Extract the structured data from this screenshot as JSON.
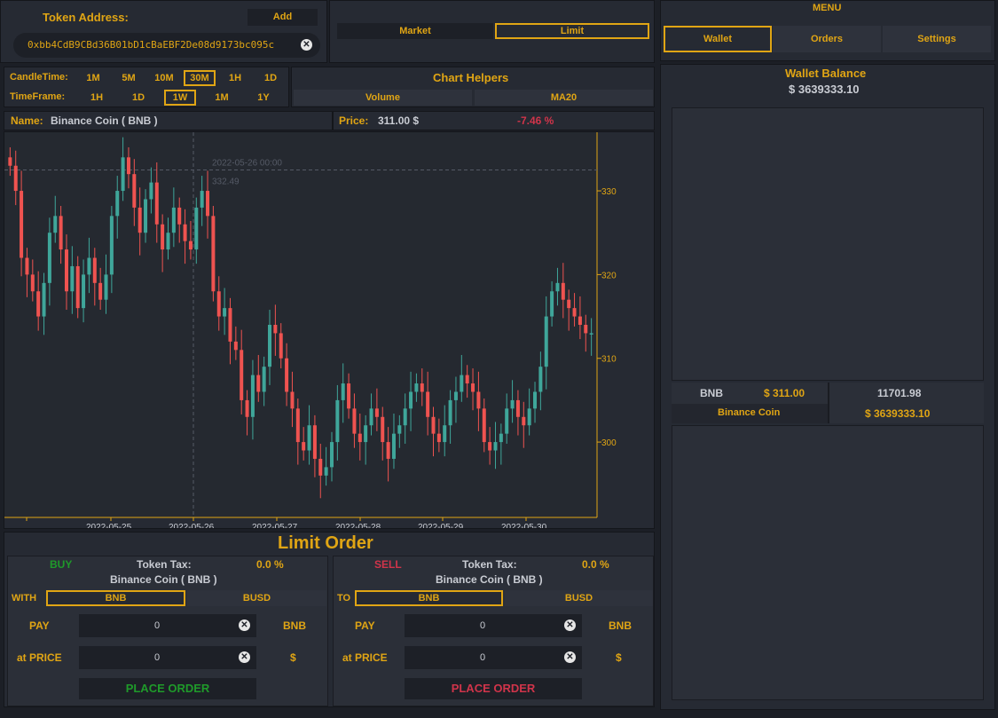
{
  "token": {
    "label": "Token Address:",
    "add_label": "Add",
    "address": "0xbb4CdB9CBd36B01bD1cBaEBF2De08d9173bc095c"
  },
  "order_type": {
    "market": "Market",
    "limit": "Limit",
    "selected": "Limit"
  },
  "menu": {
    "title": "MENU",
    "tabs": [
      "Wallet",
      "Orders",
      "Settings"
    ],
    "selected": "Wallet"
  },
  "candle_time": {
    "label": "CandleTime:",
    "options": [
      "1M",
      "5M",
      "10M",
      "30M",
      "1H",
      "1D"
    ],
    "selected": "30M"
  },
  "time_frame": {
    "label": "TimeFrame:",
    "options": [
      "1H",
      "1D",
      "1W",
      "1M",
      "1Y"
    ],
    "selected": "1W"
  },
  "chart_helpers": {
    "title": "Chart Helpers",
    "volume": "Volume",
    "ma20": "MA20"
  },
  "info": {
    "name_label": "Name:",
    "name_value": "Binance Coin ( BNB )",
    "price_label": "Price:",
    "price_value": "311.00 $",
    "change": "-7.46 %"
  },
  "colors": {
    "accent": "#e0a514",
    "up": "#3fa69a",
    "down": "#ef5350",
    "buy": "#1f9a2a",
    "sell": "#d0344a"
  },
  "chart_data": {
    "type": "candlestick",
    "x_ticks": [
      "2022-05-25",
      "2022-05-26",
      "2022-05-27",
      "2022-05-28",
      "2022-05-29",
      "2022-05-30"
    ],
    "y_ticks": [
      300,
      310,
      320,
      330
    ],
    "ylim": [
      291,
      337
    ],
    "crosshair": {
      "date": "2022-05-26 00:00",
      "price": "332.49"
    },
    "closes": [
      333,
      330,
      322,
      320,
      318,
      315,
      319,
      325,
      327,
      323,
      318,
      321,
      316,
      320,
      322,
      319,
      317,
      320,
      327,
      330,
      334,
      332,
      328,
      325,
      329,
      331,
      326,
      323,
      325,
      328,
      326,
      324,
      323,
      328,
      330,
      327,
      318,
      315,
      316,
      312,
      311,
      305,
      303,
      308,
      306,
      309,
      314,
      313,
      310,
      306,
      304,
      300,
      299,
      302,
      298,
      296,
      297,
      300,
      305,
      307,
      304,
      301,
      300,
      302,
      304,
      303,
      300,
      298,
      301,
      302,
      304,
      306,
      307,
      306,
      303,
      301,
      300,
      302,
      305,
      306,
      308,
      307,
      306,
      304,
      300,
      299,
      300,
      301,
      304,
      305,
      303,
      302,
      304,
      306,
      309,
      315,
      318,
      319,
      317,
      316,
      315,
      314,
      313,
      313
    ]
  },
  "wallet": {
    "title": "Wallet Balance",
    "total": "$ 3639333.10",
    "token_symbol": "BNB",
    "token_price": "$ 311.00",
    "token_amount": "11701.98",
    "token_name": "Binance Coin",
    "token_value": "$ 3639333.10"
  },
  "limit_order": {
    "title": "Limit Order",
    "buy": {
      "side": "BUY",
      "tax_label": "Token Tax:",
      "tax_value": "0.0 %",
      "token_name": "Binance Coin ( BNB )",
      "with_label": "WITH",
      "pair_options": [
        "BNB",
        "BUSD"
      ],
      "pay_label": "PAY",
      "pay_value": "0",
      "pay_unit": "BNB",
      "price_label": "at PRICE",
      "price_value": "0",
      "price_unit": "$",
      "place_label": "PLACE ORDER"
    },
    "sell": {
      "side": "SELL",
      "tax_label": "Token Tax:",
      "tax_value": "0.0 %",
      "token_name": "Binance Coin ( BNB )",
      "to_label": "TO",
      "pair_options": [
        "BNB",
        "BUSD"
      ],
      "pay_label": "PAY",
      "pay_value": "0",
      "pay_unit": "BNB",
      "price_label": "at PRICE",
      "price_value": "0",
      "price_unit": "$",
      "place_label": "PLACE ORDER"
    }
  }
}
